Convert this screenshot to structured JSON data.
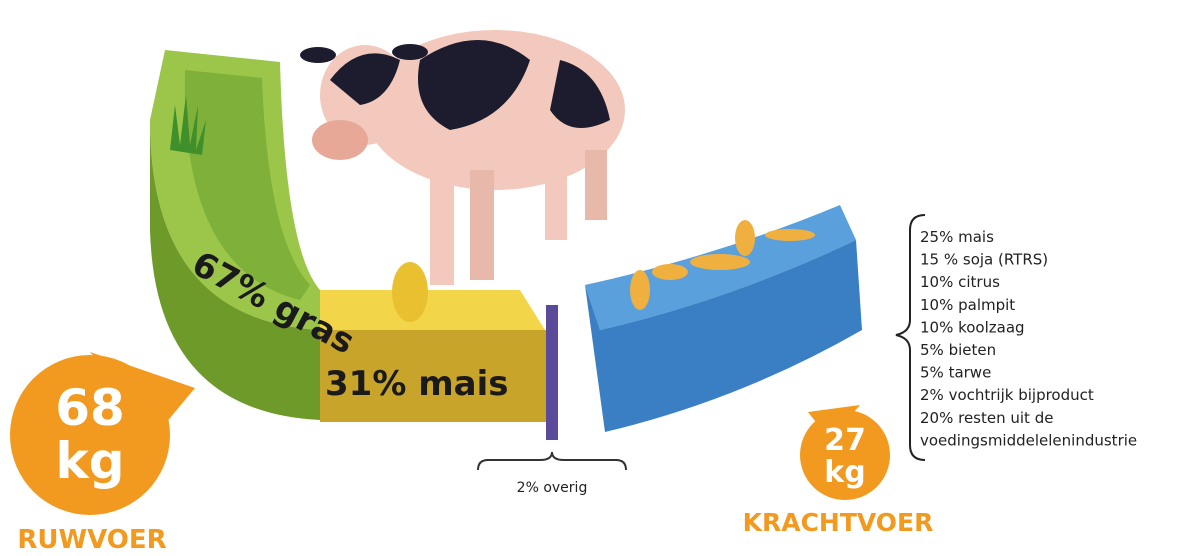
{
  "ruwvoer": {
    "amount": "68",
    "unit": "kg",
    "label": "RUWVOER",
    "segments": [
      "67% gras",
      "31% mais"
    ],
    "other": "2% overig"
  },
  "krachtvoer": {
    "amount": "27",
    "unit": "kg",
    "label": "KRACHTVOER",
    "items": [
      "25% mais",
      "15 % soja (RTRS)",
      "10% citrus",
      "10% palmpit",
      "10% koolzaag",
      "5% bieten",
      "5% tarwe",
      "2% vochtrijk bijproduct",
      "20% resten uit de",
      "voedingsmiddelelenindustrie"
    ]
  }
}
